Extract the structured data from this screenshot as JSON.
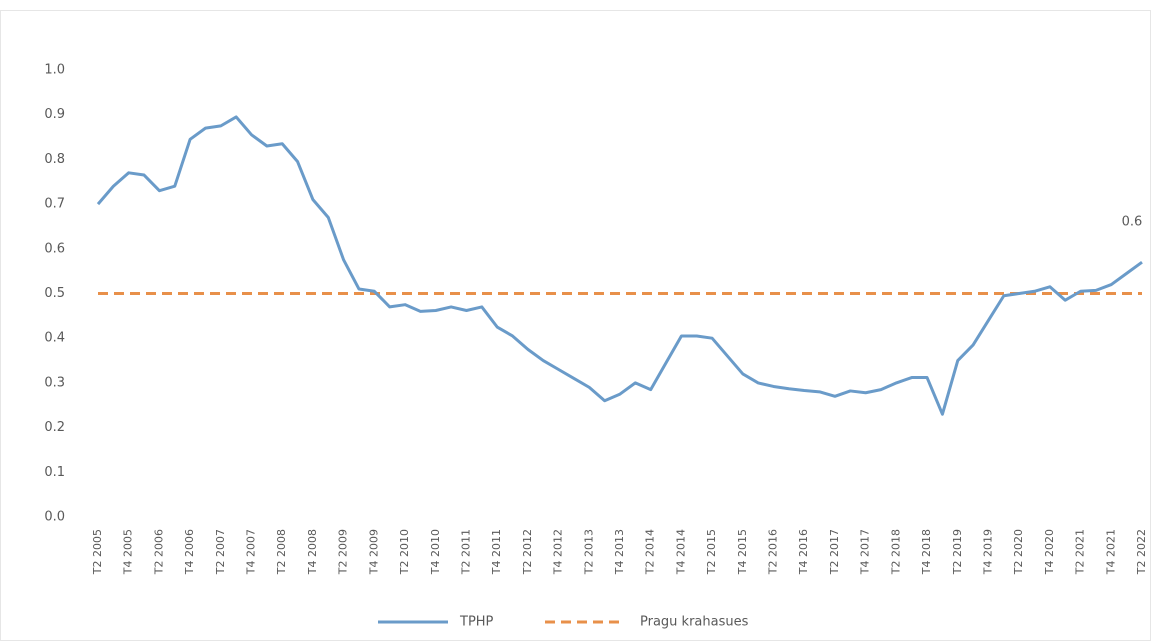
{
  "chart_data": {
    "type": "line",
    "categories": [
      "T2 2005",
      null,
      "T4 2005",
      null,
      "T2 2006",
      null,
      "T4 2006",
      null,
      "T2 2007",
      null,
      "T4 2007",
      null,
      "T2 2008",
      null,
      "T4 2008",
      null,
      "T2 2009",
      null,
      "T4 2009",
      null,
      "T2 2010",
      null,
      "T4 2010",
      null,
      "T2 2011",
      null,
      "T4 2011",
      null,
      "T2 2012",
      null,
      "T4 2012",
      null,
      "T2 2013",
      null,
      "T4 2013",
      null,
      "T2 2014",
      null,
      "T4 2014",
      null,
      "T2 2015",
      null,
      "T4 2015",
      null,
      "T2 2016",
      null,
      "T4 2016",
      null,
      "T2 2017",
      null,
      "T4 2017",
      null,
      "T2 2018",
      null,
      "T4 2018",
      null,
      "T2 2019",
      null,
      "T4 2019",
      null,
      "T2 2020",
      null,
      "T4 2020",
      null,
      "T2 2021",
      null,
      "T4 2021",
      null,
      "T2 2022"
    ],
    "series": [
      {
        "name": "TPHP",
        "color": "#6a9bc9",
        "values": [
          0.7,
          0.74,
          0.77,
          0.765,
          0.73,
          0.74,
          0.845,
          0.87,
          0.875,
          0.895,
          0.855,
          0.83,
          0.835,
          0.795,
          0.71,
          0.67,
          0.575,
          0.51,
          0.505,
          0.47,
          0.475,
          0.46,
          0.462,
          0.47,
          0.462,
          0.47,
          0.425,
          0.405,
          0.375,
          0.35,
          0.33,
          0.31,
          0.29,
          0.26,
          0.275,
          0.3,
          0.285,
          0.345,
          0.405,
          0.405,
          0.4,
          0.36,
          0.32,
          0.3,
          0.292,
          0.287,
          0.283,
          0.28,
          0.27,
          0.282,
          0.278,
          0.285,
          0.3,
          0.312,
          0.312,
          0.23,
          0.35,
          0.385,
          0.44,
          0.495,
          0.5,
          0.505,
          0.515,
          0.485,
          0.505,
          0.507,
          0.52,
          0.545,
          0.57
        ],
        "value_labels": [
          null,
          null,
          null,
          null,
          null,
          null,
          null,
          null,
          null,
          null,
          null,
          null,
          null,
          null,
          null,
          null,
          null,
          null,
          null,
          null,
          null,
          null,
          null,
          null,
          null,
          null,
          null,
          null,
          null,
          null,
          null,
          null,
          null,
          null,
          null,
          null,
          null,
          null,
          null,
          null,
          null,
          null,
          null,
          null,
          null,
          null,
          null,
          null,
          null,
          null,
          null,
          null,
          null,
          null,
          null,
          null,
          null,
          null,
          null,
          null,
          null,
          null,
          null,
          null,
          null,
          null,
          null,
          null,
          "0.6"
        ]
      }
    ],
    "reference_lines": [
      {
        "name": "Pragu krahasues",
        "value": 0.5,
        "color": "#e8904a",
        "style": "dashed"
      }
    ],
    "ylim": [
      0,
      1
    ],
    "yticks": [
      {
        "value": 0,
        "label": "0.0"
      },
      0.1,
      0.2,
      0.3,
      0.4,
      0.5,
      0.6,
      0.7,
      0.8,
      0.9,
      {
        "value": 1,
        "label": "1.0"
      }
    ],
    "grid": false,
    "legend": "bottom"
  }
}
